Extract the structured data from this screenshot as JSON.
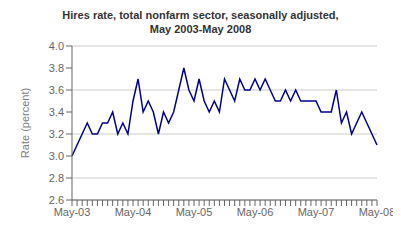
{
  "chart_data": {
    "type": "line",
    "title": "Hires rate, total nonfarm sector, seasonally adjusted,\nMay 2003-May 2008",
    "ylabel": "Rate (percent)",
    "categories": [
      "May-03",
      null,
      null,
      null,
      null,
      null,
      null,
      null,
      null,
      null,
      null,
      null,
      "May-04",
      null,
      null,
      null,
      null,
      null,
      null,
      null,
      null,
      null,
      null,
      null,
      "May-05",
      null,
      null,
      null,
      null,
      null,
      null,
      null,
      null,
      null,
      null,
      null,
      "May-06",
      null,
      null,
      null,
      null,
      null,
      null,
      null,
      null,
      null,
      null,
      null,
      "May-07",
      null,
      null,
      null,
      null,
      null,
      null,
      null,
      null,
      null,
      null,
      null,
      "May-08"
    ],
    "values": [
      3.0,
      3.1,
      3.2,
      3.3,
      3.2,
      3.2,
      3.3,
      3.3,
      3.4,
      3.2,
      3.3,
      3.2,
      3.5,
      3.7,
      3.4,
      3.5,
      3.4,
      3.2,
      3.4,
      3.3,
      3.4,
      3.6,
      3.8,
      3.6,
      3.5,
      3.7,
      3.5,
      3.4,
      3.5,
      3.4,
      3.7,
      3.6,
      3.5,
      3.7,
      3.6,
      3.6,
      3.7,
      3.6,
      3.7,
      3.6,
      3.5,
      3.5,
      3.6,
      3.5,
      3.6,
      3.5,
      3.5,
      3.5,
      3.5,
      3.4,
      3.4,
      3.4,
      3.6,
      3.3,
      3.4,
      3.2,
      3.3,
      3.4,
      3.3,
      3.2,
      3.1
    ],
    "color": "#00008B",
    "ylim": [
      2.6,
      4.0
    ],
    "yticks": [
      2.6,
      2.8,
      {
        "value": 3.0,
        "label": "3.0"
      },
      3.2,
      3.4,
      3.6,
      3.8,
      {
        "value": 4.0,
        "label": "4.0"
      }
    ],
    "grid": true
  }
}
